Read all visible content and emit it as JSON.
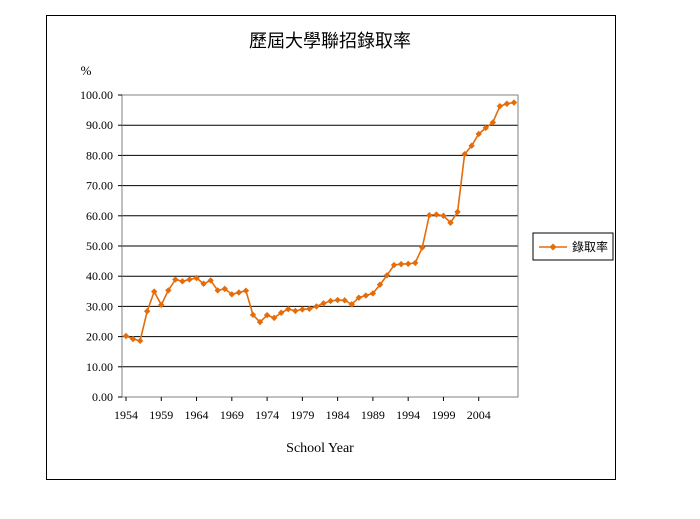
{
  "chart_data": {
    "type": "line",
    "title": "歷屆大學聯招錄取率",
    "ylabel": "%",
    "xlabel": "School Year",
    "ylim": [
      0,
      100
    ],
    "yticks": [
      "0.00",
      "10.00",
      "20.00",
      "30.00",
      "40.00",
      "50.00",
      "60.00",
      "70.00",
      "80.00",
      "90.00",
      "100.00"
    ],
    "xticks": [
      "1954",
      "1959",
      "1964",
      "1969",
      "1974",
      "1979",
      "1984",
      "1989",
      "1994",
      "1999",
      "2004"
    ],
    "xlim": [
      1954,
      2009
    ],
    "grid": "horizontal",
    "legend_position": "right",
    "color": "#E46C0A",
    "series": [
      {
        "name": "錄取率",
        "x": [
          1954,
          1955,
          1956,
          1957,
          1958,
          1959,
          1960,
          1961,
          1962,
          1963,
          1964,
          1965,
          1966,
          1967,
          1968,
          1969,
          1970,
          1971,
          1972,
          1973,
          1974,
          1975,
          1976,
          1977,
          1978,
          1979,
          1980,
          1981,
          1982,
          1983,
          1984,
          1985,
          1986,
          1987,
          1988,
          1989,
          1990,
          1991,
          1992,
          1993,
          1994,
          1995,
          1996,
          1997,
          1998,
          1999,
          2000,
          2001,
          2002,
          2003,
          2004,
          2005,
          2006,
          2007,
          2008,
          2009
        ],
        "values": [
          20.2,
          19.2,
          18.6,
          28.4,
          34.9,
          30.5,
          35.3,
          38.9,
          38.3,
          38.9,
          39.4,
          37.5,
          38.6,
          35.3,
          35.8,
          34.0,
          34.6,
          35.2,
          27.2,
          24.8,
          27.1,
          26.2,
          27.9,
          29.1,
          28.5,
          29.0,
          29.2,
          30.0,
          31.0,
          31.8,
          32.1,
          32.0,
          30.7,
          32.9,
          33.6,
          34.3,
          37.2,
          40.3,
          43.7,
          44.0,
          44.1,
          44.4,
          49.5,
          60.2,
          60.4,
          60.0,
          57.7,
          61.3,
          80.4,
          83.2,
          87.1,
          89.1,
          90.9,
          96.3,
          97.1,
          97.5
        ]
      }
    ]
  }
}
